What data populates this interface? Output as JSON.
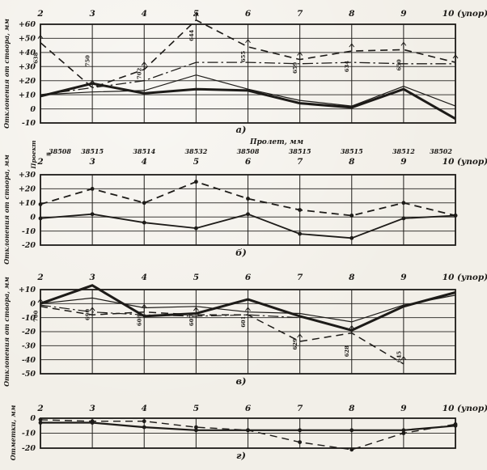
{
  "figure": {
    "paper_color": "#f2efe8",
    "ink_color": "#1d1b18",
    "description_labels": {
      "chart_a_caption": "а)",
      "chart_b_caption": "б)",
      "chart_v_caption": "в)",
      "chart_g_caption": "г)"
    }
  },
  "chart_data": [
    {
      "id": "a",
      "type": "line",
      "caption": "а)",
      "ylabel": "Отклонения от створа, мм",
      "xlabel": "",
      "categories": [
        "2",
        "3",
        "4",
        "5",
        "6",
        "7",
        "8",
        "9",
        "10 (упор)"
      ],
      "ylim": [
        -10,
        60
      ],
      "ytick_step": 10,
      "grid": true,
      "legend": "none",
      "series": [
        {
          "name": "dash-dot-line",
          "style": "dashdot",
          "width": 1.3,
          "marker": "none",
          "values": [
            10,
            15,
            20,
            33,
            33,
            32,
            33,
            32,
            32
          ]
        },
        {
          "name": "dashed-line",
          "style": "dashed",
          "width": 1.6,
          "marker": "tick",
          "values": [
            47,
            15,
            28,
            63,
            44,
            35,
            41,
            42,
            33
          ]
        },
        {
          "name": "thin-solid-line",
          "style": "solid",
          "width": 1.2,
          "marker": "none",
          "values": [
            10,
            12,
            13,
            24,
            14,
            6,
            2,
            16,
            2
          ]
        },
        {
          "name": "thick-solid-line",
          "style": "solid",
          "width": 3,
          "marker": "none",
          "values": [
            9,
            18,
            11,
            14,
            13,
            4,
            1,
            14,
            -7
          ]
        }
      ],
      "annotations": [
        {
          "at": "2",
          "text": "638",
          "y": 32
        },
        {
          "at": "3",
          "text": "750",
          "y": 30
        },
        {
          "at": "4",
          "text": "702",
          "y": 21
        },
        {
          "at": "5",
          "text": "644",
          "y": 48
        },
        {
          "at": "6",
          "text": "655",
          "y": 33
        },
        {
          "at": "7",
          "text": "659",
          "y": 25
        },
        {
          "at": "8",
          "text": "634",
          "y": 26
        },
        {
          "at": "9",
          "text": "650",
          "y": 27
        }
      ]
    },
    {
      "id": "b",
      "type": "line",
      "caption": "б)",
      "ylabel": "Отклонения от створа, мм",
      "top_header": "Пролет, мм",
      "project_label": "Проект",
      "project_mark": "≡",
      "span_values": [
        "38508",
        "38515",
        "38514",
        "38532",
        "38508",
        "38515",
        "38515",
        "38512",
        "38502"
      ],
      "categories": [
        "2",
        "3",
        "4",
        "5",
        "6",
        "7",
        "8",
        "9",
        "10 (упор)"
      ],
      "ylim": [
        -20,
        30
      ],
      "ytick_step": 10,
      "grid": true,
      "legend": "none",
      "series": [
        {
          "name": "dashed-line",
          "style": "dashed",
          "width": 1.8,
          "marker": "dot",
          "values": [
            9,
            20,
            10,
            25,
            13,
            5,
            1,
            10,
            1
          ]
        },
        {
          "name": "solid-line",
          "style": "solid",
          "width": 1.8,
          "marker": "dot",
          "values": [
            -1,
            2,
            -4,
            -8,
            2,
            -12,
            -15,
            -1,
            1
          ]
        }
      ],
      "annotations": []
    },
    {
      "id": "v",
      "type": "line",
      "caption": "в)",
      "ylabel": "Отклонения от створа, мм",
      "categories": [
        "2",
        "3",
        "4",
        "5",
        "6",
        "7",
        "8",
        "9",
        "10 (упор)"
      ],
      "ylim": [
        -50,
        10
      ],
      "ytick_step": 10,
      "grid": true,
      "legend": "none",
      "series": [
        {
          "name": "dash-dot-line",
          "style": "dashdot",
          "width": 1.2,
          "marker": "none",
          "values": [
            -1,
            -6,
            -8,
            -9,
            -8,
            -10,
            null,
            null,
            null
          ]
        },
        {
          "name": "dashed-line",
          "style": "dashed",
          "width": 1.5,
          "marker": "tick",
          "values": [
            -2,
            -8,
            -6,
            -8,
            -8,
            -27,
            -21,
            -43,
            null
          ]
        },
        {
          "name": "thin-solid-line",
          "style": "solid",
          "width": 1.2,
          "marker": "none",
          "values": [
            0,
            4,
            -3,
            -2,
            -6,
            -7,
            -13,
            -1,
            6
          ]
        },
        {
          "name": "thick-solid-line",
          "style": "solid",
          "width": 3,
          "marker": "none",
          "values": [
            0,
            13,
            -9,
            -7,
            3,
            -9,
            -19,
            -2,
            8
          ]
        }
      ],
      "annotations": [
        {
          "at": "2",
          "text": "700",
          "y": -13
        },
        {
          "at": "3",
          "text": "690",
          "y": -12
        },
        {
          "at": "4",
          "text": "608",
          "y": -16
        },
        {
          "at": "5",
          "text": "607",
          "y": -16
        },
        {
          "at": "6",
          "text": "601",
          "y": -17
        },
        {
          "at": "7",
          "text": "629",
          "y": -33
        },
        {
          "at": "8",
          "text": "628",
          "y": -38
        },
        {
          "at": "9",
          "text": "645",
          "y": -42
        }
      ]
    },
    {
      "id": "g",
      "type": "line",
      "caption": "г)",
      "ylabel": "Отметки, мм",
      "categories": [
        "2",
        "3",
        "4",
        "5",
        "6",
        "7",
        "8",
        "9",
        "10 (упор)"
      ],
      "ylim": [
        -20,
        0
      ],
      "ytick_step": 10,
      "grid": true,
      "legend": "none",
      "series": [
        {
          "name": "dashed-line",
          "style": "dashed",
          "width": 1.4,
          "marker": "dot",
          "values": [
            -1,
            -2,
            -2,
            -6,
            -8,
            -16,
            -21,
            -10,
            -4
          ]
        },
        {
          "name": "solid-line",
          "style": "solid",
          "width": 2.2,
          "marker": "dot",
          "values": [
            -3,
            -3,
            -6,
            -8,
            -8,
            -8,
            -8,
            -8,
            -5
          ]
        }
      ],
      "annotations": []
    }
  ]
}
